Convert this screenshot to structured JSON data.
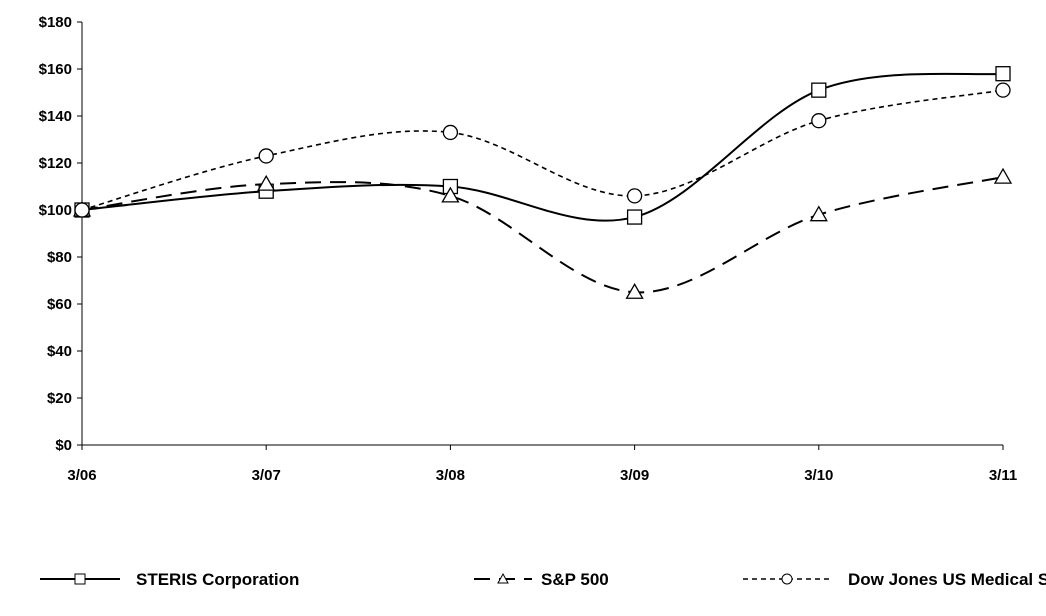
{
  "chart_data": {
    "type": "line",
    "categories": [
      "3/06",
      "3/07",
      "3/08",
      "3/09",
      "3/10",
      "3/11"
    ],
    "yticks": [
      "$0",
      "$20",
      "$40",
      "$60",
      "$80",
      "$100",
      "$120",
      "$140",
      "$160",
      "$180"
    ],
    "ylim": [
      0,
      180
    ],
    "grid": false,
    "legend": "bottom",
    "series": [
      {
        "name": "STERIS Corporation",
        "values": [
          100,
          108,
          110,
          97,
          151,
          158
        ],
        "marker": "square",
        "dash": "solid",
        "color": "#000000"
      },
      {
        "name": "S&P 500",
        "values": [
          100,
          111,
          106,
          65,
          98,
          114
        ],
        "marker": "triangle",
        "dash": "long-dash",
        "color": "#000000"
      },
      {
        "name": "Dow Jones US Medical Supplies",
        "values": [
          100,
          123,
          133,
          106,
          138,
          151
        ],
        "marker": "circle",
        "dash": "short-dash",
        "color": "#000000"
      }
    ]
  }
}
